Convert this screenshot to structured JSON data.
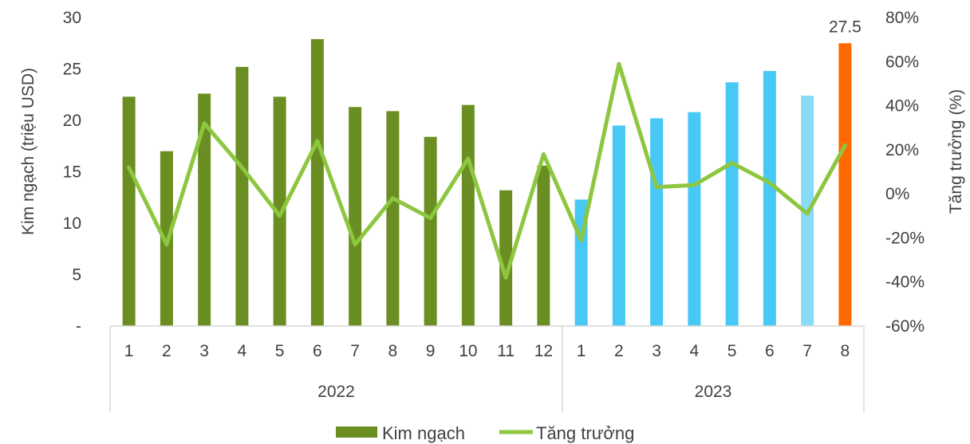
{
  "chart_data": {
    "type": "bar",
    "categories": [
      "1",
      "2",
      "3",
      "4",
      "5",
      "6",
      "7",
      "8",
      "9",
      "10",
      "11",
      "12",
      "1",
      "2",
      "3",
      "4",
      "5",
      "6",
      "7",
      "8"
    ],
    "groups": [
      {
        "label": "2022",
        "count": 12
      },
      {
        "label": "2023",
        "count": 8
      }
    ],
    "series": [
      {
        "name": "Kim ngạch",
        "type": "bar",
        "axis": "left",
        "values": [
          22.3,
          17.0,
          22.6,
          25.2,
          22.3,
          27.9,
          21.3,
          20.9,
          18.4,
          21.5,
          13.2,
          15.6,
          12.3,
          19.5,
          20.2,
          20.8,
          23.7,
          24.8,
          22.4,
          27.5
        ],
        "colors": [
          "#6b8e23",
          "#6b8e23",
          "#6b8e23",
          "#6b8e23",
          "#6b8e23",
          "#6b8e23",
          "#6b8e23",
          "#6b8e23",
          "#6b8e23",
          "#6b8e23",
          "#6b8e23",
          "#6b8e23",
          "#48c9f5",
          "#48c9f5",
          "#48c9f5",
          "#48c9f5",
          "#48c9f5",
          "#48c9f5",
          "#87dcf8",
          "#ff6a00"
        ]
      },
      {
        "name": "Tăng trưởng",
        "type": "line",
        "axis": "right",
        "color": "#8dc63f",
        "values": [
          12,
          -23,
          32,
          12,
          -10,
          24,
          -23,
          -2,
          -11,
          16,
          -38,
          18,
          -21,
          59,
          3,
          4,
          14,
          5,
          -9,
          22
        ]
      }
    ],
    "data_labels": [
      {
        "index": 19,
        "text": "27.5"
      }
    ],
    "ylabel": "Kim ngạch (triệu USD)",
    "y2label": "Tăng trưởng (%)",
    "ylim": [
      0,
      30
    ],
    "y_ticks": [
      "-",
      "5",
      "10",
      "15",
      "20",
      "25",
      "30"
    ],
    "y2lim": [
      -60,
      80
    ],
    "y2_ticks": [
      "-60%",
      "-40%",
      "-20%",
      "0%",
      "20%",
      "40%",
      "60%",
      "80%"
    ],
    "legend": {
      "position": "bottom",
      "entries": [
        "Kim ngạch",
        "Tăng trưởng"
      ]
    },
    "legend_colors": {
      "bar": "#6b8e23",
      "line": "#8dc63f"
    },
    "grid": false
  }
}
